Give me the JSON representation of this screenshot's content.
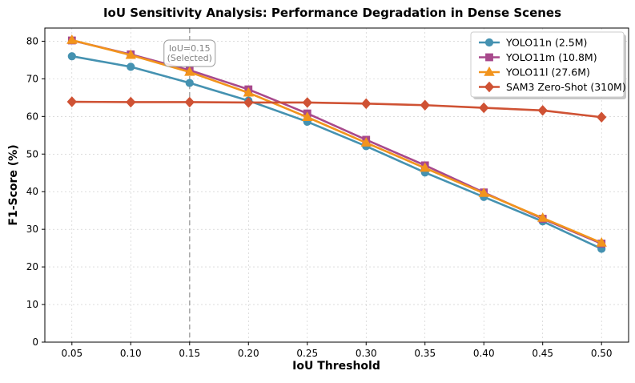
{
  "chart_data": {
    "type": "line",
    "title": "IoU Sensitivity Analysis: Performance Degradation in Dense Scenes",
    "xlabel": "IoU Threshold",
    "ylabel": "F1-Score (%)",
    "x": [
      0.05,
      0.1,
      0.15,
      0.2,
      0.25,
      0.3,
      0.35,
      0.4,
      0.45,
      0.5
    ],
    "x_tick_labels": [
      "0.05",
      "0.10",
      "0.15",
      "0.20",
      "0.25",
      "0.30",
      "0.35",
      "0.40",
      "0.45",
      "0.50"
    ],
    "xlim": [
      0.027,
      0.523
    ],
    "ylim": [
      0,
      83.5
    ],
    "y_ticks": [
      0,
      10,
      20,
      30,
      40,
      50,
      60,
      70,
      80
    ],
    "y_tick_labels": [
      "0",
      "10",
      "20",
      "30",
      "40",
      "50",
      "60",
      "70",
      "80"
    ],
    "grid": true,
    "legend_position": "top-right",
    "series": [
      {
        "name": "YOLO11n (2.5M)",
        "color": "#4592b1",
        "marker": "circle",
        "values": [
          76.0,
          73.2,
          68.9,
          64.2,
          58.6,
          52.1,
          45.1,
          38.6,
          32.1,
          24.8
        ]
      },
      {
        "name": "YOLO11m (10.8M)",
        "color": "#a8498c",
        "marker": "square",
        "values": [
          80.2,
          76.5,
          72.3,
          67.2,
          60.8,
          53.8,
          47.0,
          39.8,
          32.8,
          26.2
        ]
      },
      {
        "name": "YOLO11l (27.6M)",
        "color": "#f2941c",
        "marker": "triangle",
        "values": [
          80.3,
          76.3,
          71.8,
          66.3,
          59.8,
          53.0,
          46.3,
          39.6,
          33.0,
          26.4
        ]
      },
      {
        "name": "SAM3 Zero-Shot (310M)",
        "color": "#cf5234",
        "marker": "diamond",
        "values": [
          63.9,
          63.8,
          63.8,
          63.7,
          63.7,
          63.4,
          63.0,
          62.3,
          61.6,
          59.8
        ]
      }
    ],
    "annotations": [
      {
        "type": "vline",
        "x": 0.15,
        "label_lines": [
          "IoU=0.15",
          "(Selected)"
        ],
        "color": "#aaaaaa"
      }
    ]
  }
}
